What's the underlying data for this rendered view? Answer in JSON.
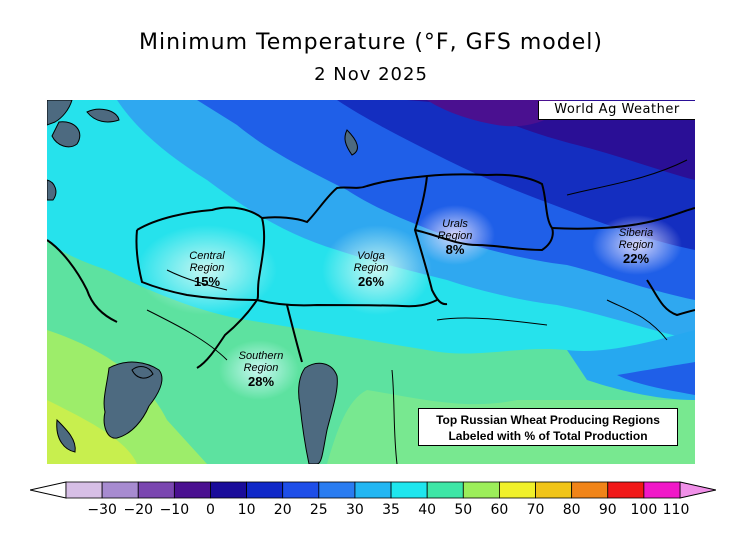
{
  "title": "Minimum Temperature (°F, GFS model)",
  "date": "2 Nov 2025",
  "credit": "World Ag Weather",
  "regions": [
    {
      "name_line1": "Central",
      "name_line2": "Region",
      "percent": "15%"
    },
    {
      "name_line1": "Volga",
      "name_line2": "Region",
      "percent": "26%"
    },
    {
      "name_line1": "Urals",
      "name_line2": "Region",
      "percent": "8%"
    },
    {
      "name_line1": "Siberia",
      "name_line2": "Region",
      "percent": "22%"
    },
    {
      "name_line1": "Southern",
      "name_line2": "Region",
      "percent": "28%"
    }
  ],
  "info_box": {
    "line1": "Top Russian Wheat Producing Regions",
    "line2": "Labeled with % of Total Production"
  },
  "legend": {
    "ticks": [
      "−30",
      "−20",
      "−10",
      "0",
      "10",
      "20",
      "25",
      "30",
      "35",
      "40",
      "50",
      "60",
      "70",
      "80",
      "90",
      "100",
      "110"
    ],
    "colors": [
      "#d7bfe6",
      "#a78bd0",
      "#7a46b0",
      "#4a1090",
      "#1a0c9a",
      "#1028c8",
      "#1e4ee8",
      "#2a7cf0",
      "#22b6f2",
      "#1ee6ee",
      "#3ee6a6",
      "#9cee5a",
      "#f0f02a",
      "#f0c418",
      "#f08418",
      "#f01818",
      "#f018c8"
    ],
    "low_arrow_color": "#ffffff",
    "high_arrow_color": "#f090e8"
  },
  "colors": {
    "sea": "#4d6a80",
    "border": "#000000"
  }
}
